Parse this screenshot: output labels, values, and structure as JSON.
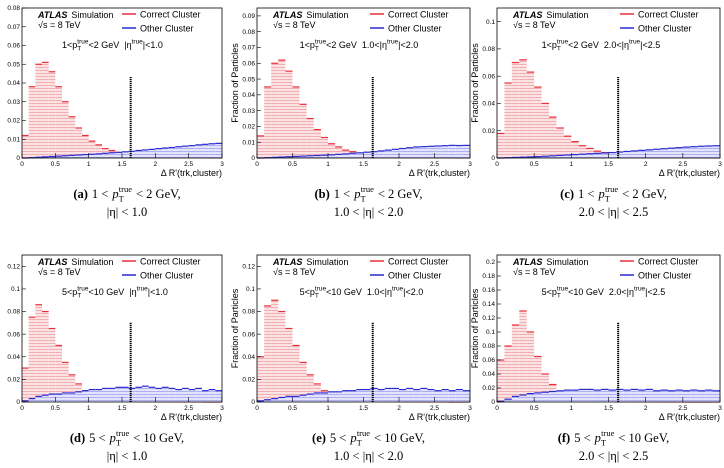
{
  "chart_data": [
    {
      "type": "histogram",
      "caption": {
        "label": "(a)",
        "pre": "1 <",
        "var": "p",
        "sub": "T",
        "sup": "true",
        "post": "< 2 GeV,",
        "line2": "|η| < 1.0"
      },
      "experiment": "ATLAS",
      "status": "Simulation",
      "energy": "√s = 8 TeV",
      "cut_pt": {
        "pre": "1<p",
        "sub": "T",
        "sup": "true",
        "post": "<2 GeV"
      },
      "cut_eta": {
        "pre": "|η",
        "sup": "true",
        "post": "|<1.0"
      },
      "x_label": "Δ R'(trk,cluster)",
      "bins": [
        0,
        0.1,
        0.2,
        0.3,
        0.4,
        0.5,
        0.6,
        0.7,
        0.8,
        0.9,
        1,
        1.1,
        1.2,
        1.3,
        1.4,
        1.5,
        1.6,
        1.7,
        1.8,
        1.9,
        2,
        2.1,
        2.2,
        2.3,
        2.4,
        2.5,
        2.6,
        2.7,
        2.8,
        2.9,
        3
      ],
      "series": [
        {
          "name": "Correct Cluster",
          "color": "#e8303a",
          "values": [
            0.012,
            0.038,
            0.05,
            0.051,
            0.046,
            0.038,
            0.03,
            0.022,
            0.016,
            0.012,
            0.009,
            0.007,
            0.005,
            0.004,
            0.003,
            0.0025,
            0.002,
            0.0015,
            0.0012,
            0.001,
            0.0008,
            0.0006,
            0.0005,
            0.0004,
            0.0003,
            0.0003,
            0.0002,
            0.0002,
            0.0001,
            0.0001
          ]
        },
        {
          "name": "Other Cluster",
          "color": "#2a2ad0",
          "values": [
            0,
            0.0002,
            0.0004,
            0.0006,
            0.0008,
            0.001,
            0.0012,
            0.0014,
            0.0016,
            0.0018,
            0.002,
            0.0022,
            0.0025,
            0.0028,
            0.003,
            0.0033,
            0.0036,
            0.004,
            0.0043,
            0.0046,
            0.005,
            0.0053,
            0.0056,
            0.006,
            0.0063,
            0.0066,
            0.007,
            0.0073,
            0.0076,
            0.0078
          ]
        }
      ],
      "xlim": [
        0,
        3
      ],
      "xticks": [
        0,
        0.5,
        1,
        1.5,
        2,
        2.5,
        3
      ],
      "ylim": [
        0,
        0.08
      ],
      "yticks": [
        0,
        0.01,
        0.02,
        0.03,
        0.04,
        0.05,
        0.06,
        0.07,
        0.08
      ],
      "cut_line": 1.63,
      "legend": "upper right"
    },
    {
      "type": "histogram",
      "caption": {
        "label": "(b)",
        "pre": "1 <",
        "var": "p",
        "sub": "T",
        "sup": "true",
        "post": "< 2 GeV,",
        "line2": "1.0 < |η| < 2.0"
      },
      "experiment": "ATLAS",
      "status": "Simulation",
      "energy": "√s = 8 TeV",
      "cut_pt": {
        "pre": "1<p",
        "sub": "T",
        "sup": "true",
        "post": "<2 GeV"
      },
      "cut_eta": {
        "pre": "1.0<|η",
        "sup": "true",
        "post": "|<2.0"
      },
      "x_label": "Δ R'(trk,cluster)",
      "y_label": "Fraction of Particles",
      "bins": [
        0,
        0.1,
        0.2,
        0.3,
        0.4,
        0.5,
        0.6,
        0.7,
        0.8,
        0.9,
        1,
        1.1,
        1.2,
        1.3,
        1.4,
        1.5,
        1.6,
        1.7,
        1.8,
        1.9,
        2,
        2.1,
        2.2,
        2.3,
        2.4,
        2.5,
        2.6,
        2.7,
        2.8,
        2.9,
        3
      ],
      "series": [
        {
          "name": "Correct Cluster",
          "color": "#e8303a",
          "values": [
            0.014,
            0.045,
            0.06,
            0.062,
            0.055,
            0.045,
            0.034,
            0.025,
            0.018,
            0.013,
            0.009,
            0.007,
            0.005,
            0.004,
            0.003,
            0.0025,
            0.002,
            0.0015,
            0.0012,
            0.001,
            0.0008,
            0.0006,
            0.0005,
            0.0004,
            0.0003,
            0.0003,
            0.0002,
            0.0002,
            0.0001,
            0.0001
          ]
        },
        {
          "name": "Other Cluster",
          "color": "#2a2ad0",
          "values": [
            0,
            0.0002,
            0.0004,
            0.0006,
            0.0008,
            0.001,
            0.0012,
            0.0014,
            0.0016,
            0.0018,
            0.002,
            0.0023,
            0.0026,
            0.003,
            0.0033,
            0.0037,
            0.004,
            0.0045,
            0.005,
            0.0055,
            0.006,
            0.0065,
            0.007,
            0.0072,
            0.0074,
            0.0076,
            0.0078,
            0.008,
            0.0079,
            0.008
          ]
        }
      ],
      "xlim": [
        0,
        3
      ],
      "xticks": [
        0,
        0.5,
        1,
        1.5,
        2,
        2.5,
        3
      ],
      "ylim": [
        0,
        0.095
      ],
      "yticks": [
        0,
        0.01,
        0.02,
        0.03,
        0.04,
        0.05,
        0.06,
        0.07,
        0.08,
        0.09
      ],
      "cut_line": 1.63,
      "legend": "upper right"
    },
    {
      "type": "histogram",
      "caption": {
        "label": "(c)",
        "pre": "1 <",
        "var": "p",
        "sub": "T",
        "sup": "true",
        "post": "< 2 GeV,",
        "line2": "2.0 < |η| < 2.5"
      },
      "experiment": "ATLAS",
      "status": "Simulation",
      "energy": "√s = 8 TeV",
      "cut_pt": {
        "pre": "1<p",
        "sub": "T",
        "sup": "true",
        "post": "<2 GeV"
      },
      "cut_eta": {
        "pre": "2.0<|η",
        "sup": "true",
        "post": "|<2.5"
      },
      "x_label": "Δ R'(trk,cluster)",
      "y_label": "Fraction of Particles",
      "bins": [
        0,
        0.1,
        0.2,
        0.3,
        0.4,
        0.5,
        0.6,
        0.7,
        0.8,
        0.9,
        1,
        1.1,
        1.2,
        1.3,
        1.4,
        1.5,
        1.6,
        1.7,
        1.8,
        1.9,
        2,
        2.1,
        2.2,
        2.3,
        2.4,
        2.5,
        2.6,
        2.7,
        2.8,
        2.9,
        3
      ],
      "series": [
        {
          "name": "Correct Cluster",
          "color": "#e8303a",
          "values": [
            0.018,
            0.055,
            0.07,
            0.072,
            0.063,
            0.052,
            0.04,
            0.03,
            0.022,
            0.016,
            0.012,
            0.009,
            0.007,
            0.005,
            0.004,
            0.003,
            0.0025,
            0.002,
            0.0015,
            0.0012,
            0.001,
            0.0008,
            0.0006,
            0.0005,
            0.0004,
            0.0003,
            0.0003,
            0.0002,
            0.0002,
            0.0001
          ]
        },
        {
          "name": "Other Cluster",
          "color": "#2a2ad0",
          "values": [
            0,
            0.0002,
            0.0004,
            0.0006,
            0.0008,
            0.001,
            0.0013,
            0.0016,
            0.0019,
            0.0022,
            0.0025,
            0.0028,
            0.0031,
            0.0034,
            0.0037,
            0.004,
            0.0044,
            0.0048,
            0.0052,
            0.0056,
            0.006,
            0.0064,
            0.0068,
            0.0072,
            0.0076,
            0.008,
            0.0083,
            0.0086,
            0.0088,
            0.009
          ]
        }
      ],
      "xlim": [
        0,
        3
      ],
      "xticks": [
        0,
        0.5,
        1,
        1.5,
        2,
        2.5,
        3
      ],
      "ylim": [
        0,
        0.11
      ],
      "yticks": [
        0,
        0.02,
        0.04,
        0.06,
        0.08,
        0.1
      ],
      "cut_line": 1.63,
      "legend": "upper right"
    },
    {
      "type": "histogram",
      "caption": {
        "label": "(d)",
        "pre": "5 <",
        "var": "p",
        "sub": "T",
        "sup": "true",
        "post": "< 10 GeV,",
        "line2": "|η| < 1.0"
      },
      "experiment": "ATLAS",
      "status": "Simulation",
      "energy": "√s = 8 TeV",
      "cut_pt": {
        "pre": "5<p",
        "sub": "T",
        "sup": "true",
        "post": "<10 GeV"
      },
      "cut_eta": {
        "pre": "|η",
        "sup": "true",
        "post": "|<1.0"
      },
      "x_label": "Δ R'(trk,cluster)",
      "bins": [
        0,
        0.1,
        0.2,
        0.3,
        0.4,
        0.5,
        0.6,
        0.7,
        0.8,
        0.9,
        1,
        1.1,
        1.2,
        1.3,
        1.4,
        1.5,
        1.6,
        1.7,
        1.8,
        1.9,
        2,
        2.1,
        2.2,
        2.3,
        2.4,
        2.5,
        2.6,
        2.7,
        2.8,
        2.9,
        3
      ],
      "series": [
        {
          "name": "Correct Cluster",
          "color": "#e8303a",
          "values": [
            0.03,
            0.075,
            0.086,
            0.08,
            0.065,
            0.05,
            0.035,
            0.024,
            0.016,
            0.01,
            0.007,
            0.005,
            0.003,
            0.002,
            0.0015,
            0.001,
            0.0008,
            0.0006,
            0.0005,
            0.0004,
            0.0003,
            0.0002,
            0.0002,
            0.0001,
            0.0001,
            0.0001,
            0.0001,
            0,
            0,
            0
          ]
        },
        {
          "name": "Other Cluster",
          "color": "#2a2ad0",
          "values": [
            0.001,
            0.003,
            0.005,
            0.006,
            0.007,
            0.007,
            0.008,
            0.008,
            0.009,
            0.01,
            0.011,
            0.011,
            0.012,
            0.012,
            0.013,
            0.013,
            0.012,
            0.013,
            0.014,
            0.013,
            0.012,
            0.013,
            0.012,
            0.011,
            0.012,
            0.011,
            0.012,
            0.01,
            0.011,
            0.01
          ]
        }
      ],
      "xlim": [
        0,
        3
      ],
      "xticks": [
        0,
        0.5,
        1,
        1.5,
        2,
        2.5,
        3
      ],
      "ylim": [
        0,
        0.13
      ],
      "yticks": [
        0,
        0.02,
        0.04,
        0.06,
        0.08,
        0.1,
        0.12
      ],
      "cut_line": 1.63,
      "legend": "upper right"
    },
    {
      "type": "histogram",
      "caption": {
        "label": "(e)",
        "pre": "5 <",
        "var": "p",
        "sub": "T",
        "sup": "true",
        "post": "< 10 GeV,",
        "line2": "1.0 < |η| < 2.0"
      },
      "experiment": "ATLAS",
      "status": "Simulation",
      "energy": "√s = 8 TeV",
      "cut_pt": {
        "pre": "5<p",
        "sub": "T",
        "sup": "true",
        "post": "<10 GeV"
      },
      "cut_eta": {
        "pre": "1.0<|η",
        "sup": "true",
        "post": "|<2.0"
      },
      "x_label": "Δ R'(trk,cluster)",
      "y_label": "Fraction of Particles",
      "bins": [
        0,
        0.1,
        0.2,
        0.3,
        0.4,
        0.5,
        0.6,
        0.7,
        0.8,
        0.9,
        1,
        1.1,
        1.2,
        1.3,
        1.4,
        1.5,
        1.6,
        1.7,
        1.8,
        1.9,
        2,
        2.1,
        2.2,
        2.3,
        2.4,
        2.5,
        2.6,
        2.7,
        2.8,
        2.9,
        3
      ],
      "series": [
        {
          "name": "Correct Cluster",
          "color": "#e8303a",
          "values": [
            0.04,
            0.085,
            0.09,
            0.08,
            0.065,
            0.05,
            0.035,
            0.024,
            0.016,
            0.01,
            0.007,
            0.005,
            0.003,
            0.002,
            0.0015,
            0.001,
            0.0008,
            0.0006,
            0.0005,
            0.0004,
            0.0003,
            0.0002,
            0.0002,
            0.0001,
            0.0001,
            0.0001,
            0.0001,
            0,
            0,
            0
          ]
        },
        {
          "name": "Other Cluster",
          "color": "#2a2ad0",
          "values": [
            0.001,
            0.002,
            0.003,
            0.004,
            0.005,
            0.005,
            0.006,
            0.007,
            0.008,
            0.008,
            0.009,
            0.009,
            0.01,
            0.01,
            0.011,
            0.011,
            0.012,
            0.011,
            0.012,
            0.012,
            0.011,
            0.012,
            0.011,
            0.012,
            0.011,
            0.01,
            0.011,
            0.01,
            0.011,
            0.01
          ]
        }
      ],
      "xlim": [
        0,
        3
      ],
      "xticks": [
        0,
        0.5,
        1,
        1.5,
        2,
        2.5,
        3
      ],
      "ylim": [
        0,
        0.13
      ],
      "yticks": [
        0,
        0.02,
        0.04,
        0.06,
        0.08,
        0.1,
        0.12
      ],
      "cut_line": 1.63,
      "legend": "upper right"
    },
    {
      "type": "histogram",
      "caption": {
        "label": "(f)",
        "pre": "5 <",
        "var": "p",
        "sub": "T",
        "sup": "true",
        "post": "< 10 GeV,",
        "line2": "2.0 < |η| < 2.5"
      },
      "experiment": "ATLAS",
      "status": "Simulation",
      "energy": "√s = 8 TeV",
      "cut_pt": {
        "pre": "5<p",
        "sub": "T",
        "sup": "true",
        "post": "<10 GeV"
      },
      "cut_eta": {
        "pre": "2.0<|η",
        "sup": "true",
        "post": "|<2.5"
      },
      "x_label": "Δ R'(trk,cluster)",
      "y_label": "Fraction of Particles",
      "bins": [
        0,
        0.1,
        0.2,
        0.3,
        0.4,
        0.5,
        0.6,
        0.7,
        0.8,
        0.9,
        1,
        1.1,
        1.2,
        1.3,
        1.4,
        1.5,
        1.6,
        1.7,
        1.8,
        1.9,
        2,
        2.1,
        2.2,
        2.3,
        2.4,
        2.5,
        2.6,
        2.7,
        2.8,
        2.9,
        3
      ],
      "series": [
        {
          "name": "Correct Cluster",
          "color": "#e8303a",
          "values": [
            0.06,
            0.08,
            0.11,
            0.13,
            0.1,
            0.065,
            0.04,
            0.025,
            0.015,
            0.01,
            0.006,
            0.004,
            0.003,
            0.002,
            0.001,
            0.001,
            0.0005,
            0.0005,
            0.0003,
            0.0003,
            0.0002,
            0.0002,
            0.0001,
            0.0001,
            0.0001,
            0,
            0,
            0,
            0,
            0
          ]
        },
        {
          "name": "Other Cluster",
          "color": "#2a2ad0",
          "values": [
            0.001,
            0.004,
            0.008,
            0.01,
            0.012,
            0.013,
            0.014,
            0.015,
            0.016,
            0.017,
            0.017,
            0.018,
            0.018,
            0.017,
            0.018,
            0.017,
            0.018,
            0.017,
            0.018,
            0.017,
            0.018,
            0.016,
            0.017,
            0.016,
            0.017,
            0.016,
            0.017,
            0.016,
            0.017,
            0.016
          ]
        }
      ],
      "xlim": [
        0,
        3
      ],
      "xticks": [
        0,
        0.5,
        1,
        1.5,
        2,
        2.5,
        3
      ],
      "ylim": [
        0,
        0.21
      ],
      "yticks": [
        0,
        0.02,
        0.04,
        0.06,
        0.08,
        0.1,
        0.12,
        0.14,
        0.16,
        0.18,
        0.2
      ],
      "cut_line": 1.63,
      "legend": "upper right"
    }
  ]
}
